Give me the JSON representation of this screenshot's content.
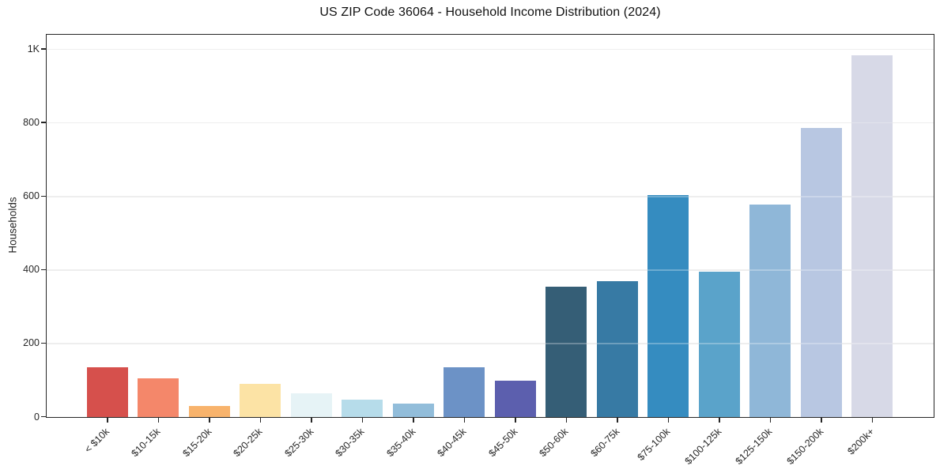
{
  "chart_data": {
    "type": "bar",
    "title": "US ZIP Code 36064 - Household Income Distribution (2024)",
    "xlabel": "",
    "ylabel": "Households",
    "categories": [
      "< $10k",
      "$10-15k",
      "$15-20k",
      "$20-25k",
      "$25-30k",
      "$30-35k",
      "$35-40k",
      "$40-45k",
      "$45-50k",
      "$50-60k",
      "$60-75k",
      "$75-100k",
      "$100-125k",
      "$125-150k",
      "$150-200k",
      "$200k+"
    ],
    "values": [
      135,
      105,
      30,
      90,
      65,
      48,
      37,
      135,
      98,
      355,
      370,
      605,
      396,
      578,
      787,
      985
    ],
    "bar_colors": [
      "#d6504c",
      "#f4876a",
      "#f8b36c",
      "#fce3a5",
      "#e6f3f6",
      "#b6dcea",
      "#92bdda",
      "#6c92c6",
      "#5c5fae",
      "#355e76",
      "#377aa4",
      "#358cc0",
      "#5aa3ca",
      "#8fb7d8",
      "#b8c7e2",
      "#d7d9e7"
    ],
    "ylim": [
      0,
      1038
    ],
    "yticks": [
      {
        "v": 0,
        "label": "0"
      },
      {
        "v": 200,
        "label": "200"
      },
      {
        "v": 400,
        "label": "400"
      },
      {
        "v": 600,
        "label": "600"
      },
      {
        "v": 800,
        "label": "800"
      },
      {
        "v": 1000,
        "label": "1K"
      }
    ],
    "grid": "horizontal",
    "legend": "none",
    "colors": {
      "spine": "#262626",
      "grid": "#e8e8e8",
      "grid_over_bars": "rgba(255,255,255,0.28)",
      "text": "#262626",
      "background": "#ffffff"
    }
  }
}
